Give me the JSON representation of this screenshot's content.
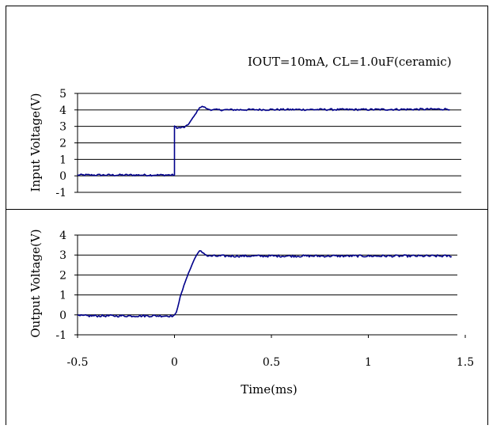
{
  "annotation": "IOUT=10mA, CL=1.0uF(ceramic)",
  "colors": {
    "trace": "#00008B",
    "frame": "#000000",
    "grid": "#000000",
    "background": "#ffffff"
  },
  "chart_data": [
    {
      "type": "line",
      "title": "",
      "xlabel": "",
      "ylabel": "Input Voltage(V)",
      "xlim": [
        -0.5,
        1.45
      ],
      "ylim": [
        -1,
        5
      ],
      "yticks": [
        "-1",
        "0",
        "1",
        "2",
        "3",
        "4",
        "5"
      ],
      "grid": true,
      "series": [
        {
          "x": [
            -0.5,
            -0.3,
            -0.1,
            -0.005,
            0.0,
            0.0,
            0.02,
            0.05,
            0.07,
            0.1,
            0.13,
            0.15,
            0.17,
            0.2,
            0.5,
            1.0,
            1.42
          ],
          "y": [
            0.05,
            0.05,
            0.05,
            0.05,
            0.05,
            3.0,
            2.9,
            2.95,
            3.1,
            3.6,
            4.15,
            4.2,
            4.05,
            4.0,
            4.02,
            4.02,
            4.05
          ]
        }
      ]
    },
    {
      "type": "line",
      "title": "",
      "xlabel": "Time(ms)",
      "ylabel": "Output Voltage(V)",
      "xlim": [
        -0.5,
        1.5
      ],
      "ylim": [
        -1,
        4
      ],
      "yticks": [
        "-1",
        "0",
        "1",
        "2",
        "3",
        "4"
      ],
      "xticks": [
        "-0.5",
        "0",
        "0.5",
        "1",
        "1.5"
      ],
      "grid": true,
      "series": [
        {
          "x": [
            -0.5,
            -0.3,
            -0.05,
            0.0,
            0.01,
            0.03,
            0.06,
            0.09,
            0.11,
            0.13,
            0.15,
            0.17,
            0.2,
            0.5,
            1.0,
            1.43
          ],
          "y": [
            -0.05,
            -0.05,
            -0.05,
            -0.05,
            0.15,
            0.9,
            1.8,
            2.5,
            2.95,
            3.2,
            3.1,
            2.95,
            2.95,
            2.95,
            2.95,
            2.95
          ]
        }
      ]
    }
  ]
}
